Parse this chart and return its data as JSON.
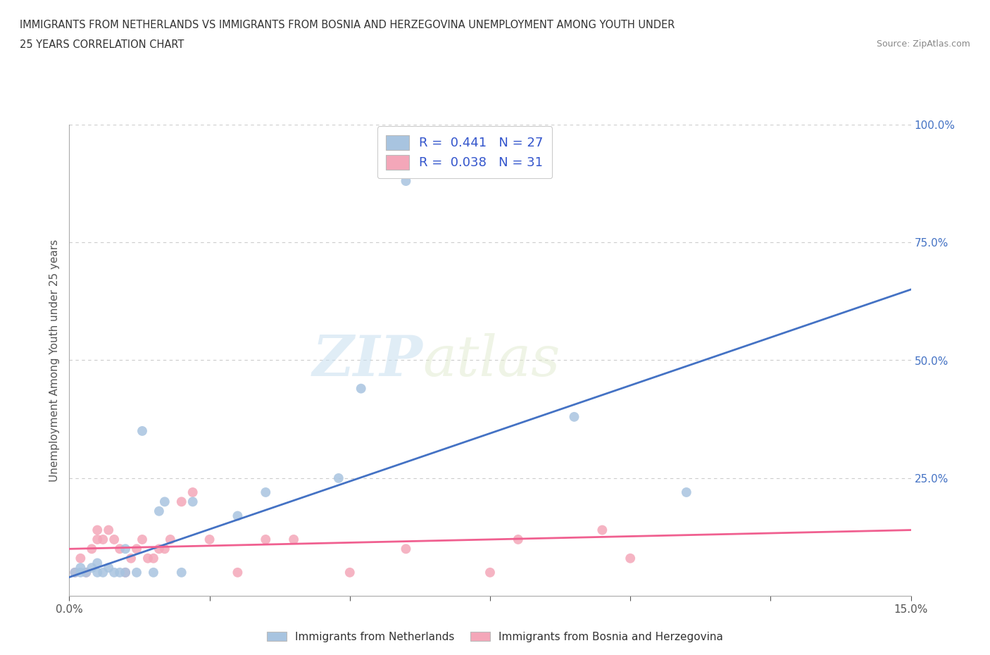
{
  "title_line1": "IMMIGRANTS FROM NETHERLANDS VS IMMIGRANTS FROM BOSNIA AND HERZEGOVINA UNEMPLOYMENT AMONG YOUTH UNDER",
  "title_line2": "25 YEARS CORRELATION CHART",
  "source": "Source: ZipAtlas.com",
  "ylabel": "Unemployment Among Youth under 25 years",
  "xlim": [
    0.0,
    0.15
  ],
  "ylim": [
    0.0,
    1.0
  ],
  "xticks": [
    0.0,
    0.025,
    0.05,
    0.075,
    0.1,
    0.125,
    0.15
  ],
  "yticks": [
    0.0,
    0.25,
    0.5,
    0.75,
    1.0
  ],
  "netherlands_color": "#a8c4e0",
  "bosnia_color": "#f4a7b9",
  "netherlands_line_color": "#4472c4",
  "bosnia_line_color": "#f06090",
  "netherlands_R": 0.441,
  "netherlands_N": 27,
  "bosnia_R": 0.038,
  "bosnia_N": 31,
  "nl_x": [
    0.001,
    0.002,
    0.002,
    0.003,
    0.004,
    0.005,
    0.005,
    0.006,
    0.007,
    0.008,
    0.009,
    0.01,
    0.01,
    0.012,
    0.013,
    0.015,
    0.016,
    0.017,
    0.02,
    0.022,
    0.03,
    0.035,
    0.048,
    0.052,
    0.06,
    0.09,
    0.11
  ],
  "nl_y": [
    0.05,
    0.05,
    0.06,
    0.05,
    0.06,
    0.05,
    0.07,
    0.05,
    0.06,
    0.05,
    0.05,
    0.05,
    0.1,
    0.05,
    0.35,
    0.05,
    0.18,
    0.2,
    0.05,
    0.2,
    0.17,
    0.22,
    0.25,
    0.44,
    0.88,
    0.38,
    0.22
  ],
  "bo_x": [
    0.001,
    0.002,
    0.003,
    0.004,
    0.005,
    0.005,
    0.006,
    0.007,
    0.008,
    0.009,
    0.01,
    0.011,
    0.012,
    0.013,
    0.014,
    0.015,
    0.016,
    0.017,
    0.018,
    0.02,
    0.022,
    0.025,
    0.03,
    0.035,
    0.04,
    0.05,
    0.06,
    0.075,
    0.08,
    0.095,
    0.1
  ],
  "bo_y": [
    0.05,
    0.08,
    0.05,
    0.1,
    0.12,
    0.14,
    0.12,
    0.14,
    0.12,
    0.1,
    0.05,
    0.08,
    0.1,
    0.12,
    0.08,
    0.08,
    0.1,
    0.1,
    0.12,
    0.2,
    0.22,
    0.12,
    0.05,
    0.12,
    0.12,
    0.05,
    0.1,
    0.05,
    0.12,
    0.14,
    0.08
  ],
  "nl_line_x": [
    0.0,
    0.15
  ],
  "nl_line_y": [
    0.04,
    0.65
  ],
  "bo_line_x": [
    0.0,
    0.15
  ],
  "bo_line_y": [
    0.1,
    0.14
  ],
  "watermark_zip": "ZIP",
  "watermark_atlas": "atlas",
  "background_color": "#ffffff",
  "grid_color": "#cccccc",
  "legend_text_color": "#3355cc",
  "axis_label_color": "#555555",
  "title_color": "#333333"
}
